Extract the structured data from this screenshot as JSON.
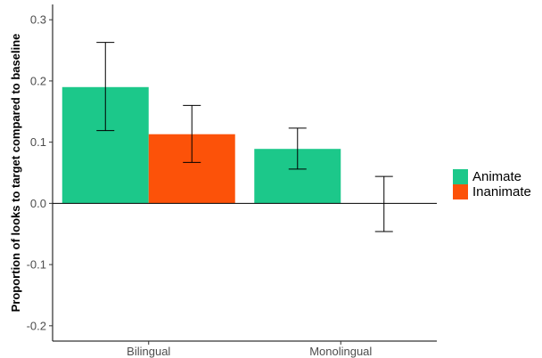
{
  "chart_data": {
    "type": "bar",
    "categories": [
      "Bilingual",
      "Monolingual"
    ],
    "series": [
      {
        "name": "Animate",
        "color": "#1cc88a",
        "values": [
          0.19,
          0.089
        ],
        "err_low": [
          0.119,
          0.056
        ],
        "err_high": [
          0.263,
          0.123
        ]
      },
      {
        "name": "Inanimate",
        "color": "#fc5209",
        "values": [
          0.113,
          0.0
        ],
        "err_low": [
          0.067,
          -0.046
        ],
        "err_high": [
          0.16,
          0.044
        ]
      }
    ],
    "title": "",
    "xlabel": "",
    "ylabel": "Proportion of looks to target compared to baseline",
    "ylim": [
      -0.225,
      0.325
    ],
    "yticks": [
      -0.2,
      -0.1,
      0.0,
      0.1,
      0.2,
      0.3
    ],
    "ytick_labels": [
      "-0.2",
      "-0.1",
      "0.0",
      "0.1",
      "0.2",
      "0.3"
    ],
    "grid": false,
    "legend_position": "right"
  }
}
